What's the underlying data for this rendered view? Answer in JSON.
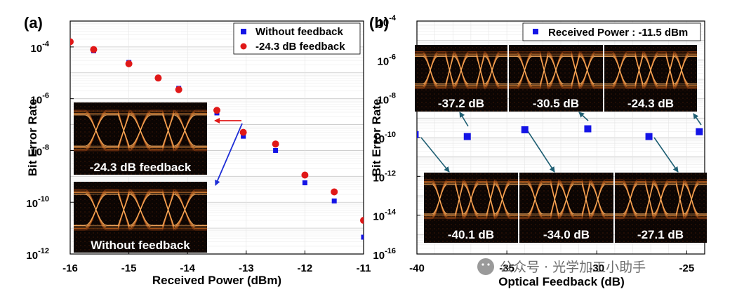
{
  "panels": [
    {
      "label": "(a)",
      "ylabel": "Bit Error Rate",
      "xlabel": "Received Power (dBm)"
    },
    {
      "label": "(b)",
      "ylabel": "Bit Error Rate",
      "xlabel": "Optical Feedback (dB)"
    }
  ],
  "legend_a": [
    "Without feedback",
    "-24.3 dB feedback"
  ],
  "legend_b": [
    "Received Power : -11.5 dBm"
  ],
  "insets_a": [
    {
      "label": "-24.3 dB feedback"
    },
    {
      "label": "Without feedback"
    }
  ],
  "insets_b": [
    {
      "label": "-37.2 dB"
    },
    {
      "label": "-30.5 dB"
    },
    {
      "label": "-24.3 dB"
    },
    {
      "label": "-40.1 dB"
    },
    {
      "label": "-34.0 dB"
    },
    {
      "label": "-27.1 dB"
    }
  ],
  "watermark": "公众号 · 光学加工小助手",
  "colors": {
    "blue": "#1414e6",
    "red": "#e01818",
    "arrow_red": "#e01818",
    "arrow_blue": "#1e2ed6",
    "arrow_teal": "#1f5f73"
  },
  "chart_data": [
    {
      "type": "scatter",
      "title": "(a)",
      "xlabel": "Received Power (dBm)",
      "ylabel": "Bit Error Rate",
      "xlim": [
        -16,
        -11
      ],
      "ylim_log10": [
        -12,
        -3
      ],
      "yscale": "log",
      "x_ticks": [
        "-16",
        "-15",
        "-14",
        "-13",
        "-12",
        "-11"
      ],
      "y_tick_exponents": [
        "-4",
        "-6",
        "-8",
        "-10",
        "-12"
      ],
      "grid": true,
      "legend_position": "top-right",
      "series": [
        {
          "name": "Without feedback",
          "marker": "square",
          "color": "#1414e6",
          "x": [
            -16.0,
            -15.6,
            -15.0,
            -14.5,
            -14.15,
            -13.5,
            -13.05,
            -12.5,
            -12.0,
            -11.5,
            -11.0
          ],
          "log10_ber": [
            -3.8,
            -4.15,
            -4.6,
            -5.2,
            -5.6,
            -6.55,
            -7.45,
            -8.0,
            -9.25,
            -9.95,
            -11.35
          ]
        },
        {
          "name": "-24.3 dB feedback",
          "marker": "circle",
          "color": "#e01818",
          "x": [
            -16.0,
            -15.6,
            -15.0,
            -14.5,
            -14.15,
            -13.5,
            -13.05,
            -12.5,
            -12.0,
            -11.5,
            -11.0
          ],
          "log10_ber": [
            -3.8,
            -4.1,
            -4.65,
            -5.2,
            -5.65,
            -6.45,
            -7.3,
            -7.75,
            -8.95,
            -9.6,
            -10.7
          ]
        }
      ]
    },
    {
      "type": "scatter",
      "title": "(b)",
      "xlabel": "Optical Feedback (dB)",
      "ylabel": "Bit Error Rate",
      "xlim": [
        -40,
        -24
      ],
      "ylim_log10": [
        -16,
        -4
      ],
      "yscale": "log",
      "x_ticks": [
        "-40",
        "-35",
        "-30",
        "-25"
      ],
      "y_tick_exponents": [
        "-4",
        "-6",
        "-8",
        "-10",
        "-12",
        "-14",
        "-16"
      ],
      "grid": true,
      "legend_position": "top-right",
      "series": [
        {
          "name": "Received Power : -11.5 dBm",
          "marker": "square",
          "color": "#1414e6",
          "x": [
            -40.1,
            -37.2,
            -34.0,
            -30.5,
            -27.1,
            -24.3
          ],
          "log10_ber": [
            -9.85,
            -9.95,
            -9.6,
            -9.55,
            -9.95,
            -9.7
          ]
        }
      ]
    }
  ]
}
